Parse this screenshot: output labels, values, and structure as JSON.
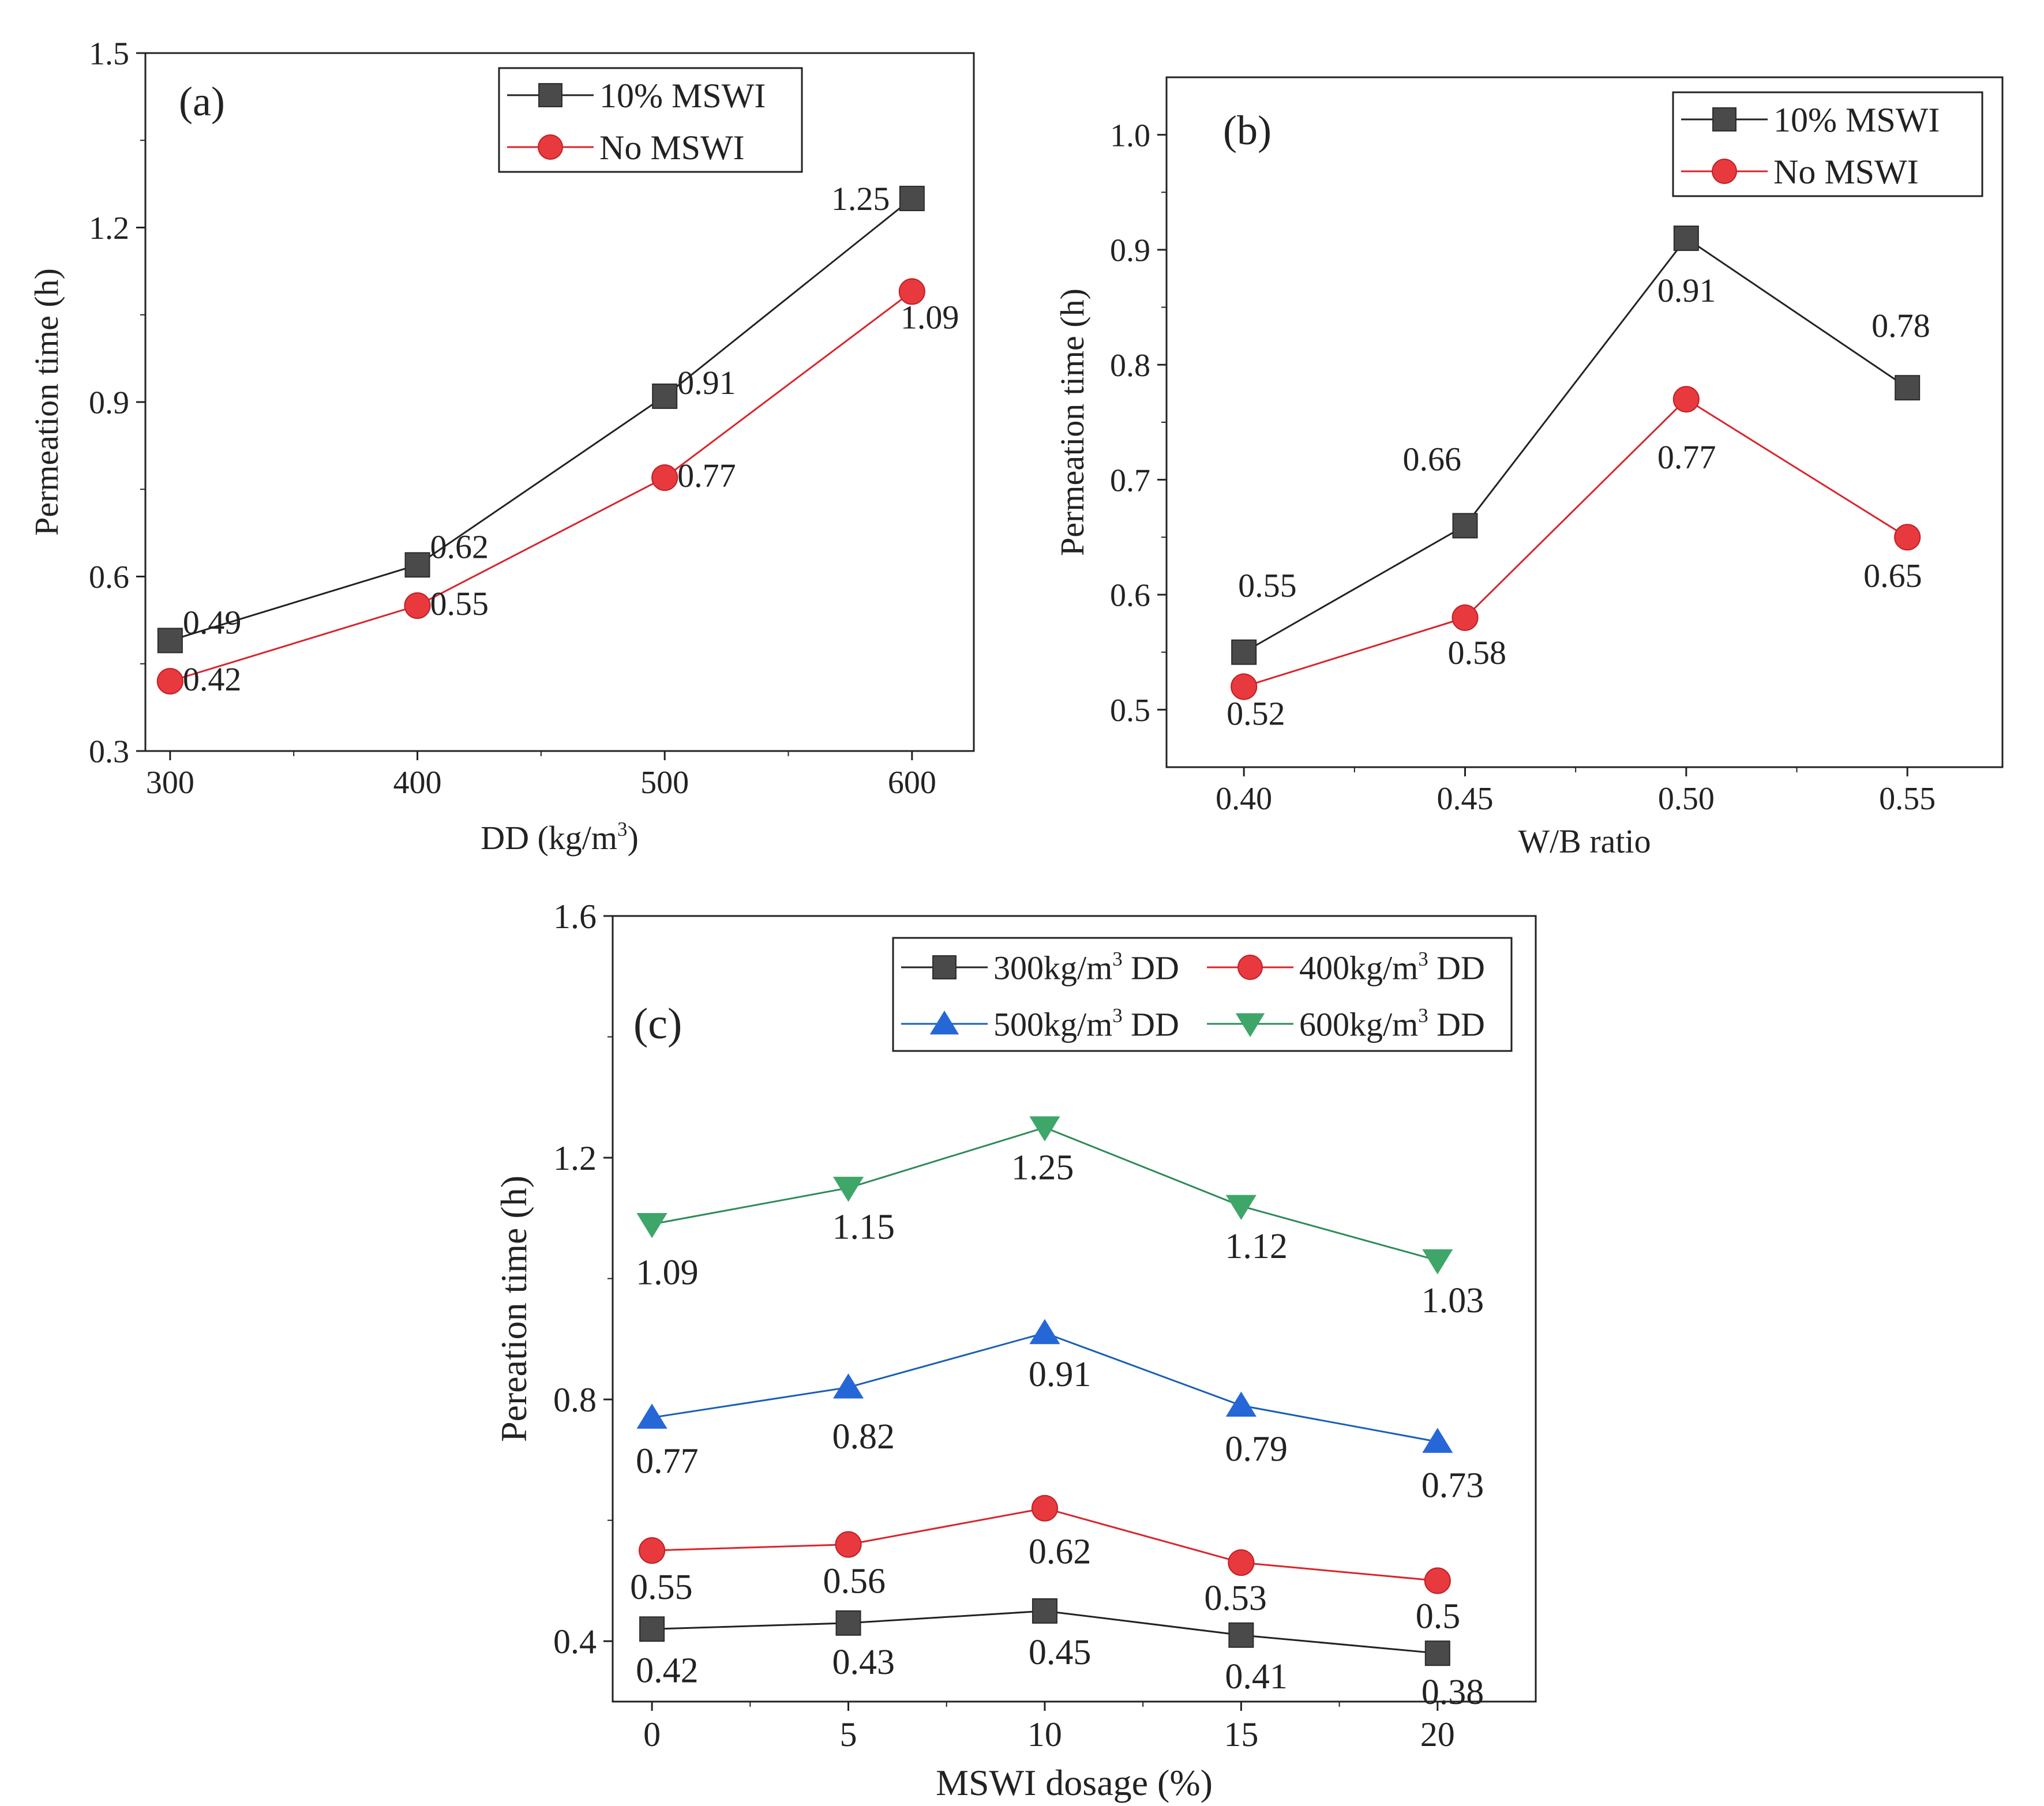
{
  "colors": {
    "axis": "#222222",
    "series_gray": "#4a4a4a",
    "series_red": "#e8393f",
    "series_blue": "#2567d6",
    "series_green": "#3fa66a",
    "line_gray": "#222222",
    "line_red": "#d9242b",
    "line_blue": "#1a5fb4",
    "line_green": "#2e8b57"
  },
  "chart_data": [
    {
      "id": "a",
      "type": "line",
      "panel_label": "(a)",
      "xlabel": "DD (kg/m",
      "xlabel_sup": "3",
      "xlabel_suffix": ")",
      "ylabel": "Permeation time (h)",
      "x": [
        300,
        400,
        500,
        600
      ],
      "xticks": [
        "300",
        "400",
        "500",
        "600"
      ],
      "xlim": [
        290,
        625
      ],
      "ylim": [
        0.3,
        1.5
      ],
      "yticks": [
        "0.3",
        "0.6",
        "0.9",
        "1.2",
        "1.5"
      ],
      "legend_position": "top-right",
      "series": [
        {
          "name": "10% MSWI",
          "marker": "square",
          "color_key": "series_gray",
          "line_key": "line_gray",
          "values": [
            0.49,
            0.62,
            0.91,
            1.25
          ],
          "labels": [
            "0.49",
            "0.62",
            "0.91",
            "1.25"
          ]
        },
        {
          "name": "No  MSWI",
          "marker": "circle",
          "color_key": "series_red",
          "line_key": "line_red",
          "values": [
            0.42,
            0.55,
            0.77,
            1.09
          ],
          "labels": [
            "0.42",
            "0.55",
            "0.77",
            "1.09"
          ]
        }
      ]
    },
    {
      "id": "b",
      "type": "line",
      "panel_label": "(b)",
      "xlabel": "W/B ratio",
      "ylabel": "Permeation time (h)",
      "x": [
        0.4,
        0.45,
        0.5,
        0.55
      ],
      "xticks": [
        "0.40",
        "0.45",
        "0.50",
        "0.55"
      ],
      "xlim": [
        0.3825,
        0.5715
      ],
      "ylim": [
        0.45,
        1.05
      ],
      "yticks": [
        "0.5",
        "0.6",
        "0.7",
        "0.8",
        "0.9",
        "1.0"
      ],
      "legend_position": "top-right",
      "series": [
        {
          "name": "10% MSWI",
          "marker": "square",
          "color_key": "series_gray",
          "line_key": "line_gray",
          "values": [
            0.55,
            0.66,
            0.91,
            0.78
          ],
          "labels": [
            "0.55",
            "0.66",
            "0.91",
            "0.78"
          ]
        },
        {
          "name": "No  MSWI",
          "marker": "circle",
          "color_key": "series_red",
          "line_key": "line_red",
          "values": [
            0.52,
            0.58,
            0.77,
            0.65
          ],
          "labels": [
            "0.52",
            "0.58",
            "0.77",
            "0.65"
          ]
        }
      ]
    },
    {
      "id": "c",
      "type": "line",
      "panel_label": "(c)",
      "xlabel": "MSWI dosage (%)",
      "ylabel": "Pereation time (h)",
      "x": [
        0,
        5,
        10,
        15,
        20
      ],
      "xticks": [
        "0",
        "5",
        "10",
        "15",
        "20"
      ],
      "xlim": [
        -1,
        22.5
      ],
      "ylim": [
        0.3,
        1.6
      ],
      "yticks": [
        "0.4",
        "0.8",
        "1.2",
        "1.6"
      ],
      "legend_position": "top-right",
      "series": [
        {
          "name": "300kg/m",
          "name_sup": "3",
          "name_suffix": " DD",
          "marker": "square",
          "color_key": "series_gray",
          "line_key": "line_gray",
          "values": [
            0.42,
            0.43,
            0.45,
            0.41,
            0.38
          ],
          "labels": [
            "0.42",
            "0.43",
            "0.45",
            "0.41",
            "0.38"
          ]
        },
        {
          "name": "400kg/m",
          "name_sup": "3",
          "name_suffix": " DD",
          "marker": "circle",
          "color_key": "series_red",
          "line_key": "line_red",
          "values": [
            0.55,
            0.56,
            0.62,
            0.53,
            0.5
          ],
          "labels": [
            "0.55",
            "0.56",
            "0.62",
            "0.53",
            "0.5"
          ]
        },
        {
          "name": "500kg/m",
          "name_sup": "3",
          "name_suffix": " DD",
          "marker": "triangle-up",
          "color_key": "series_blue",
          "line_key": "line_blue",
          "values": [
            0.77,
            0.82,
            0.91,
            0.79,
            0.73
          ],
          "labels": [
            "0.77",
            "0.82",
            "0.91",
            "0.79",
            "0.73"
          ]
        },
        {
          "name": "600kg/m",
          "name_sup": "3",
          "name_suffix": " DD",
          "marker": "triangle-down",
          "color_key": "series_green",
          "line_key": "line_green",
          "values": [
            1.09,
            1.15,
            1.25,
            1.12,
            1.03
          ],
          "labels": [
            "1.09",
            "1.15",
            "1.25",
            "1.12",
            "1.03"
          ]
        }
      ]
    }
  ]
}
